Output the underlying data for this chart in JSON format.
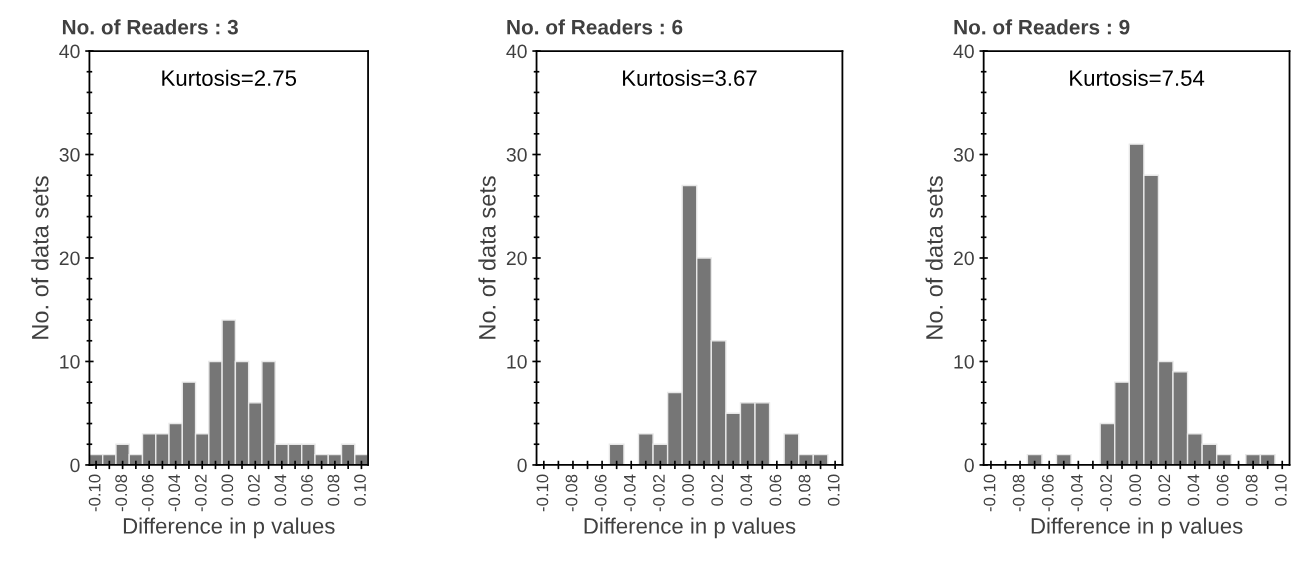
{
  "chart_data": [
    {
      "type": "histogram",
      "title": "No. of Readers : 3",
      "xlabel": "Difference in p values",
      "ylabel": "No. of data sets",
      "annotations": [
        "Kurtosis=2.75"
      ],
      "color": "#767676",
      "bins": [
        -0.105,
        -0.095,
        -0.085,
        -0.075,
        -0.065,
        -0.055,
        -0.045,
        -0.035,
        -0.025,
        -0.015,
        -0.005,
        0.005,
        0.015,
        0.025,
        0.035,
        0.045,
        0.055,
        0.065,
        0.075,
        0.085,
        0.095,
        0.105
      ],
      "values": [
        1,
        1,
        2,
        1,
        3,
        3,
        4,
        8,
        3,
        10,
        14,
        10,
        6,
        10,
        2,
        2,
        2,
        1,
        1,
        2,
        1
      ],
      "xlim": [
        -0.105,
        0.105
      ],
      "ylim": [
        0,
        40
      ],
      "xticks": [
        {
          "value": -0.1,
          "label": "-0.10"
        },
        {
          "value": -0.09,
          "label": null
        },
        {
          "value": -0.08,
          "label": "-0.08"
        },
        {
          "value": -0.07,
          "label": null
        },
        {
          "value": -0.06,
          "label": "-0.06"
        },
        {
          "value": -0.05,
          "label": null
        },
        {
          "value": -0.04,
          "label": "-0.04"
        },
        {
          "value": -0.03,
          "label": null
        },
        {
          "value": -0.02,
          "label": "-0.02"
        },
        {
          "value": -0.01,
          "label": null
        },
        {
          "value": 0,
          "label": "0.00"
        },
        {
          "value": 0.01,
          "label": null
        },
        {
          "value": 0.02,
          "label": "0.02"
        },
        {
          "value": 0.03,
          "label": null
        },
        {
          "value": 0.04,
          "label": "0.04"
        },
        {
          "value": 0.05,
          "label": null
        },
        {
          "value": 0.06,
          "label": "0.06"
        },
        {
          "value": 0.07,
          "label": null
        },
        {
          "value": 0.08,
          "label": "0.08"
        },
        {
          "value": 0.09,
          "label": null
        },
        {
          "value": 0.1,
          "label": "0.10"
        }
      ],
      "yticks": [
        0,
        {
          "value": 2,
          "label": null
        },
        {
          "value": 4,
          "label": null
        },
        {
          "value": 6,
          "label": null
        },
        {
          "value": 8,
          "label": null
        },
        10,
        {
          "value": 12,
          "label": null
        },
        {
          "value": 14,
          "label": null
        },
        {
          "value": 16,
          "label": null
        },
        {
          "value": 18,
          "label": null
        },
        20,
        {
          "value": 22,
          "label": null
        },
        {
          "value": 24,
          "label": null
        },
        {
          "value": 26,
          "label": null
        },
        {
          "value": 28,
          "label": null
        },
        30,
        {
          "value": 32,
          "label": null
        },
        {
          "value": 34,
          "label": null
        },
        {
          "value": 36,
          "label": null
        },
        {
          "value": 38,
          "label": null
        },
        40
      ],
      "grid": false
    },
    {
      "type": "histogram",
      "title": "No. of Readers : 6",
      "xlabel": "Difference in p values",
      "ylabel": "No. of data sets",
      "annotations": [
        "Kurtosis=3.67"
      ],
      "color": "#767676",
      "bins": [
        -0.105,
        -0.095,
        -0.085,
        -0.075,
        -0.065,
        -0.055,
        -0.045,
        -0.035,
        -0.025,
        -0.015,
        -0.005,
        0.005,
        0.015,
        0.025,
        0.035,
        0.045,
        0.055,
        0.065,
        0.075,
        0.085,
        0.095,
        0.105
      ],
      "values": [
        0,
        0,
        0,
        0,
        0,
        2,
        0,
        3,
        2,
        7,
        27,
        20,
        12,
        5,
        6,
        6,
        0,
        3,
        1,
        1,
        0
      ],
      "xlim": [
        -0.105,
        0.105
      ],
      "ylim": [
        0,
        40
      ],
      "xticks": [
        {
          "value": -0.1,
          "label": "-0.10"
        },
        {
          "value": -0.09,
          "label": null
        },
        {
          "value": -0.08,
          "label": "-0.08"
        },
        {
          "value": -0.07,
          "label": null
        },
        {
          "value": -0.06,
          "label": "-0.06"
        },
        {
          "value": -0.05,
          "label": null
        },
        {
          "value": -0.04,
          "label": "-0.04"
        },
        {
          "value": -0.03,
          "label": null
        },
        {
          "value": -0.02,
          "label": "-0.02"
        },
        {
          "value": -0.01,
          "label": null
        },
        {
          "value": 0,
          "label": "0.00"
        },
        {
          "value": 0.01,
          "label": null
        },
        {
          "value": 0.02,
          "label": "0.02"
        },
        {
          "value": 0.03,
          "label": null
        },
        {
          "value": 0.04,
          "label": "0.04"
        },
        {
          "value": 0.05,
          "label": null
        },
        {
          "value": 0.06,
          "label": "0.06"
        },
        {
          "value": 0.07,
          "label": null
        },
        {
          "value": 0.08,
          "label": "0.08"
        },
        {
          "value": 0.09,
          "label": null
        },
        {
          "value": 0.1,
          "label": "0.10"
        }
      ],
      "yticks": [
        0,
        {
          "value": 2,
          "label": null
        },
        {
          "value": 4,
          "label": null
        },
        {
          "value": 6,
          "label": null
        },
        {
          "value": 8,
          "label": null
        },
        10,
        {
          "value": 12,
          "label": null
        },
        {
          "value": 14,
          "label": null
        },
        {
          "value": 16,
          "label": null
        },
        {
          "value": 18,
          "label": null
        },
        20,
        {
          "value": 22,
          "label": null
        },
        {
          "value": 24,
          "label": null
        },
        {
          "value": 26,
          "label": null
        },
        {
          "value": 28,
          "label": null
        },
        30,
        {
          "value": 32,
          "label": null
        },
        {
          "value": 34,
          "label": null
        },
        {
          "value": 36,
          "label": null
        },
        {
          "value": 38,
          "label": null
        },
        40
      ],
      "grid": false
    },
    {
      "type": "histogram",
      "title": "No. of Readers : 9",
      "xlabel": "Difference in p values",
      "ylabel": "No. of data sets",
      "annotations": [
        "Kurtosis=7.54"
      ],
      "color": "#767676",
      "bins": [
        -0.105,
        -0.095,
        -0.085,
        -0.075,
        -0.065,
        -0.055,
        -0.045,
        -0.035,
        -0.025,
        -0.015,
        -0.005,
        0.005,
        0.015,
        0.025,
        0.035,
        0.045,
        0.055,
        0.065,
        0.075,
        0.085,
        0.095,
        0.105
      ],
      "values": [
        0,
        0,
        0,
        1,
        0,
        1,
        0,
        0,
        4,
        8,
        31,
        28,
        10,
        9,
        3,
        2,
        1,
        0,
        1,
        1,
        0
      ],
      "xlim": [
        -0.105,
        0.105
      ],
      "ylim": [
        0,
        40
      ],
      "xticks": [
        {
          "value": -0.1,
          "label": "-0.10"
        },
        {
          "value": -0.09,
          "label": null
        },
        {
          "value": -0.08,
          "label": "-0.08"
        },
        {
          "value": -0.07,
          "label": null
        },
        {
          "value": -0.06,
          "label": "-0.06"
        },
        {
          "value": -0.05,
          "label": null
        },
        {
          "value": -0.04,
          "label": "-0.04"
        },
        {
          "value": -0.03,
          "label": null
        },
        {
          "value": -0.02,
          "label": "-0.02"
        },
        {
          "value": -0.01,
          "label": null
        },
        {
          "value": 0,
          "label": "0.00"
        },
        {
          "value": 0.01,
          "label": null
        },
        {
          "value": 0.02,
          "label": "0.02"
        },
        {
          "value": 0.03,
          "label": null
        },
        {
          "value": 0.04,
          "label": "0.04"
        },
        {
          "value": 0.05,
          "label": null
        },
        {
          "value": 0.06,
          "label": "0.06"
        },
        {
          "value": 0.07,
          "label": null
        },
        {
          "value": 0.08,
          "label": "0.08"
        },
        {
          "value": 0.09,
          "label": null
        },
        {
          "value": 0.1,
          "label": "0.10"
        }
      ],
      "yticks": [
        0,
        {
          "value": 2,
          "label": null
        },
        {
          "value": 4,
          "label": null
        },
        {
          "value": 6,
          "label": null
        },
        {
          "value": 8,
          "label": null
        },
        10,
        {
          "value": 12,
          "label": null
        },
        {
          "value": 14,
          "label": null
        },
        {
          "value": 16,
          "label": null
        },
        {
          "value": 18,
          "label": null
        },
        20,
        {
          "value": 22,
          "label": null
        },
        {
          "value": 24,
          "label": null
        },
        {
          "value": 26,
          "label": null
        },
        {
          "value": 28,
          "label": null
        },
        30,
        {
          "value": 32,
          "label": null
        },
        {
          "value": 34,
          "label": null
        },
        {
          "value": 36,
          "label": null
        },
        {
          "value": 38,
          "label": null
        },
        40
      ],
      "grid": false
    }
  ]
}
